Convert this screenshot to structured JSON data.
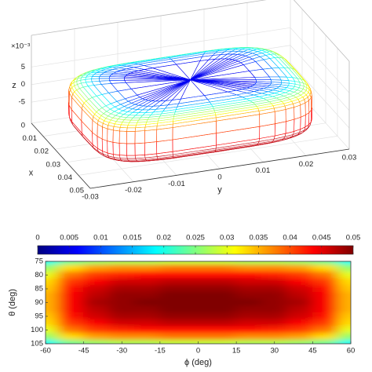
{
  "chart_data": [
    {
      "type": "surface",
      "xlabel": "x",
      "ylabel": "y",
      "zlabel": "z",
      "zscale": "×10⁻³",
      "xlim": [
        0,
        0.05
      ],
      "xticks": [
        0,
        0.01,
        0.02,
        0.03,
        0.04,
        0.05
      ],
      "ylim": [
        -0.03,
        0.03
      ],
      "yticks": [
        -0.03,
        -0.02,
        -0.01,
        0,
        0.01,
        0.02,
        0.03
      ],
      "zlim": [
        -11,
        14
      ],
      "zticks": [
        -5,
        0,
        5
      ],
      "grid": true
    },
    {
      "type": "colorbar",
      "colormap": "jet",
      "clim": [
        0,
        0.05
      ],
      "ticks": [
        0,
        0.005,
        0.01,
        0.015,
        0.02,
        0.025,
        0.03,
        0.035,
        0.04,
        0.045,
        0.05
      ]
    },
    {
      "type": "heatmap",
      "xlabel": "ϕ (deg)",
      "ylabel": "θ (deg)",
      "colormap": "jet",
      "x": [
        -60,
        -50,
        -40,
        -30,
        -20,
        -10,
        0,
        10,
        20,
        30,
        40,
        50,
        60
      ],
      "y": [
        75,
        77.5,
        80,
        82.5,
        85,
        87.5,
        90,
        92.5,
        95,
        97.5,
        100,
        102.5,
        105
      ],
      "values": [
        [
          0.019,
          0.024,
          0.026,
          0.027,
          0.027,
          0.028,
          0.028,
          0.028,
          0.027,
          0.027,
          0.026,
          0.024,
          0.019
        ],
        [
          0.026,
          0.033,
          0.036,
          0.037,
          0.037,
          0.038,
          0.038,
          0.038,
          0.037,
          0.037,
          0.036,
          0.033,
          0.026
        ],
        [
          0.03,
          0.038,
          0.041,
          0.042,
          0.043,
          0.043,
          0.043,
          0.043,
          0.043,
          0.042,
          0.041,
          0.038,
          0.03
        ],
        [
          0.033,
          0.041,
          0.044,
          0.046,
          0.046,
          0.047,
          0.047,
          0.047,
          0.046,
          0.046,
          0.044,
          0.041,
          0.033
        ],
        [
          0.034,
          0.043,
          0.046,
          0.048,
          0.048,
          0.049,
          0.049,
          0.049,
          0.048,
          0.048,
          0.046,
          0.043,
          0.034
        ],
        [
          0.035,
          0.044,
          0.047,
          0.049,
          0.049,
          0.05,
          0.05,
          0.05,
          0.049,
          0.049,
          0.047,
          0.044,
          0.035
        ],
        [
          0.035,
          0.044,
          0.048,
          0.049,
          0.05,
          0.05,
          0.05,
          0.05,
          0.05,
          0.049,
          0.048,
          0.044,
          0.035
        ],
        [
          0.035,
          0.044,
          0.047,
          0.049,
          0.049,
          0.05,
          0.05,
          0.05,
          0.049,
          0.049,
          0.047,
          0.044,
          0.035
        ],
        [
          0.034,
          0.043,
          0.046,
          0.048,
          0.048,
          0.049,
          0.049,
          0.049,
          0.048,
          0.048,
          0.046,
          0.043,
          0.034
        ],
        [
          0.033,
          0.041,
          0.044,
          0.046,
          0.046,
          0.047,
          0.047,
          0.047,
          0.046,
          0.046,
          0.044,
          0.041,
          0.033
        ],
        [
          0.03,
          0.038,
          0.041,
          0.042,
          0.043,
          0.043,
          0.043,
          0.043,
          0.043,
          0.042,
          0.041,
          0.038,
          0.03
        ],
        [
          0.026,
          0.033,
          0.036,
          0.037,
          0.037,
          0.038,
          0.038,
          0.038,
          0.037,
          0.037,
          0.036,
          0.033,
          0.026
        ],
        [
          0.019,
          0.024,
          0.026,
          0.027,
          0.027,
          0.028,
          0.028,
          0.028,
          0.027,
          0.027,
          0.026,
          0.024,
          0.019
        ]
      ],
      "xlim": [
        -60,
        60
      ],
      "ylim": [
        75,
        105
      ],
      "yreverse": true,
      "xticks": [
        -60,
        -45,
        -30,
        -15,
        0,
        15,
        30,
        45,
        60
      ],
      "yticks": [
        75,
        80,
        85,
        90,
        95,
        100,
        105
      ]
    }
  ]
}
